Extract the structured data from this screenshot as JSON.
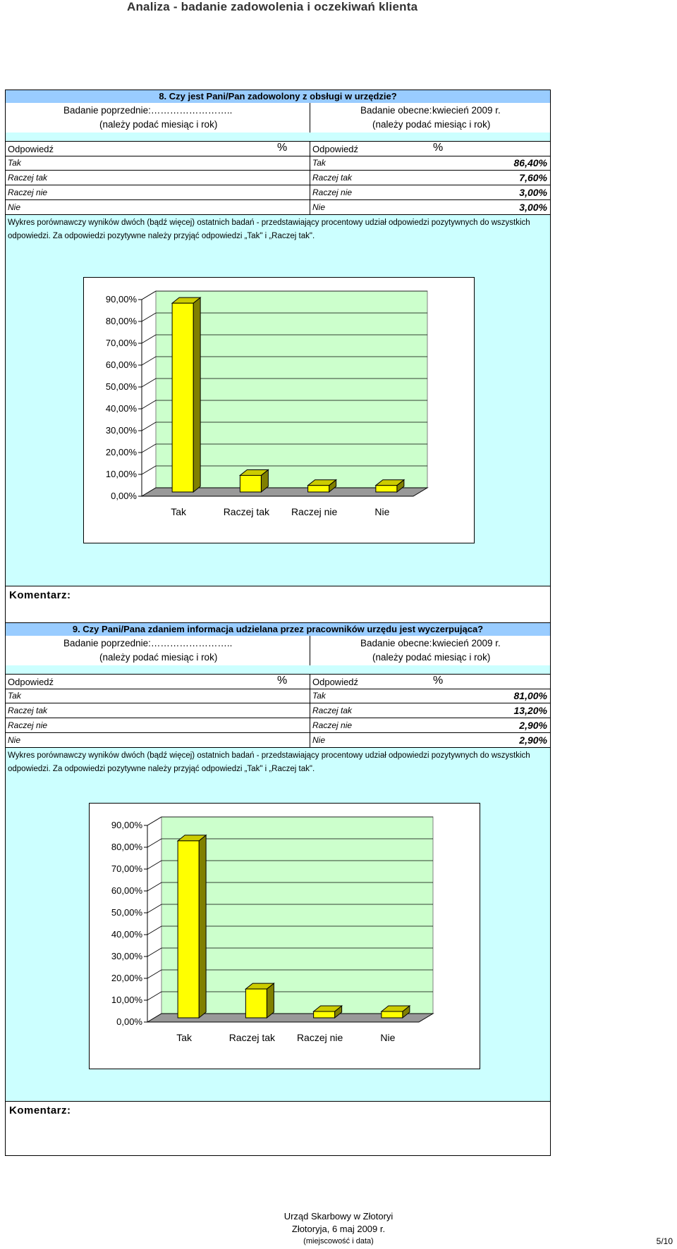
{
  "page_title": "Analiza - badanie zadowolenia i oczekiwań klienta",
  "sections": [
    {
      "question": "8. Czy jest Pani/Pan zadowolony z obsługi w urzędzie?",
      "prev_label": "Badanie poprzednie:……………………..",
      "prev_hint": "(należy podać miesiąc i rok)",
      "curr_label": "Badanie obecne:",
      "curr_value": "kwiecień 2009 r.",
      "curr_hint": "(należy podać miesiąc i rok)",
      "col_answer": "Odpowiedź",
      "col_pct": "%",
      "rows": [
        {
          "left": "Tak",
          "right": "Tak",
          "value": "86,40%"
        },
        {
          "left": "Raczej tak",
          "right": "Raczej tak",
          "value": "7,60%"
        },
        {
          "left": "Raczej nie",
          "right": "Raczej nie",
          "value": "3,00%"
        },
        {
          "left": "Nie",
          "right": "Nie",
          "value": "3,00%"
        }
      ],
      "note": "Wykres porównawczy wyników dwóch (bądź więcej) ostatnich badań - przedstawiający procentowy udział odpowiedzi pozytywnych do wszystkich odpowiedzi. Za odpowiedzi pozytywne należy przyjąć odpowiedzi „Tak\" i „Raczej tak\".",
      "comment_label": "Komentarz:"
    },
    {
      "question": "9. Czy Pani/Pana zdaniem informacja udzielana przez pracowników urzędu jest wyczerpująca?",
      "prev_label": "Badanie poprzednie:……………………..",
      "prev_hint": "(należy podać miesiąc i rok)",
      "curr_label": "Badanie obecne:",
      "curr_value": "kwiecień 2009 r.",
      "curr_hint": "(należy podać miesiąc i rok)",
      "col_answer": "Odpowiedź",
      "col_pct": "%",
      "rows": [
        {
          "left": "Tak",
          "right": "Tak",
          "value": "81,00%"
        },
        {
          "left": "Raczej tak",
          "right": "Raczej tak",
          "value": "13,20%"
        },
        {
          "left": "Raczej nie",
          "right": "Raczej nie",
          "value": "2,90%"
        },
        {
          "left": "Nie",
          "right": "Nie",
          "value": "2,90%"
        }
      ],
      "note": "Wykres porównawczy wyników dwóch (bądź więcej) ostatnich badań - przedstawiający procentowy udział odpowiedzi pozytywnych do wszystkich odpowiedzi. Za odpowiedzi pozytywne należy przyjąć odpowiedzi „Tak\" i „Raczej tak\".",
      "comment_label": "Komentarz:"
    }
  ],
  "chart_data": [
    {
      "type": "bar",
      "categories": [
        "Tak",
        "Raczej tak",
        "Raczej nie",
        "Nie"
      ],
      "values": [
        86.4,
        7.6,
        3.0,
        3.0
      ],
      "ylim": [
        0,
        90
      ],
      "yticks": [
        "0,00%",
        "10,00%",
        "20,00%",
        "30,00%",
        "40,00%",
        "50,00%",
        "60,00%",
        "70,00%",
        "80,00%",
        "90,00%"
      ],
      "grid": true,
      "bar_color": "#ffff00",
      "plot_color": "#ccffcc"
    },
    {
      "type": "bar",
      "categories": [
        "Tak",
        "Raczej tak",
        "Raczej nie",
        "Nie"
      ],
      "values": [
        81.0,
        13.2,
        2.9,
        2.9
      ],
      "ylim": [
        0,
        90
      ],
      "yticks": [
        "0,00%",
        "10,00%",
        "20,00%",
        "30,00%",
        "40,00%",
        "50,00%",
        "60,00%",
        "70,00%",
        "80,00%",
        "90,00%"
      ],
      "grid": true,
      "bar_color": "#ffff00",
      "plot_color": "#ccffcc"
    }
  ],
  "footer": {
    "office": "Urząd Skarbowy w Złotoryi",
    "place_date": "Złotoryja, 6 maj 2009 r.",
    "hint": "(miejscowość i data)",
    "page": "5/10"
  }
}
